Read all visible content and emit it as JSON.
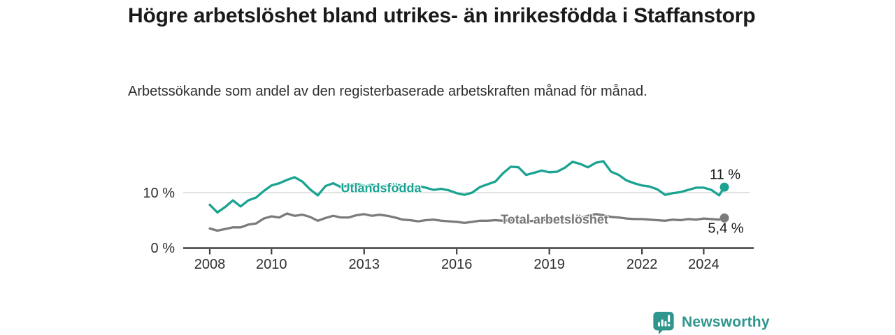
{
  "header": {
    "title": "Högre arbetslöshet bland utrikes- än inrikesfödda i Staffanstorp",
    "subtitle": "Arbetssökande som andel av den registerbaserade arbetskraften månad för månad."
  },
  "footer": {
    "brand": "Newsworthy"
  },
  "colors": {
    "accent_teal": "#1aa392",
    "series_gray": "#7b7b7b",
    "axis": "#3f3f3f",
    "gridline": "#d8d8d8",
    "tick_text": "#2e2e2e",
    "title_text": "#1a1a1a",
    "logo_teal": "#2f968e"
  },
  "chart_data": {
    "type": "line",
    "title": "Högre arbetslöshet bland utrikes- än inrikesfödda i Staffanstorp",
    "subtitle": "Arbetssökande som andel av den registerbaserade arbetskraften månad för månad.",
    "xlabel": "",
    "ylabel": "",
    "xlim": [
      2007.8,
      2025.0
    ],
    "ylim": [
      0,
      16.5
    ],
    "grid": "single horizontal gridline at 10 %",
    "legend_position": "inline labels on lines",
    "x_ticks": [
      {
        "year": 2008,
        "label": "2008"
      },
      {
        "year": 2010,
        "label": "2010"
      },
      {
        "year": 2013,
        "label": "2013"
      },
      {
        "year": 2016,
        "label": "2016"
      },
      {
        "year": 2019,
        "label": "2019"
      },
      {
        "year": 2022,
        "label": "2022"
      },
      {
        "year": 2024,
        "label": "2024"
      }
    ],
    "y_ticks": [
      {
        "value": 0,
        "label": "0 %"
      },
      {
        "value": 10,
        "label": "10 %"
      }
    ],
    "x": [
      2008,
      2008.25,
      2008.5,
      2008.75,
      2009,
      2009.25,
      2009.5,
      2009.75,
      2010,
      2010.25,
      2010.5,
      2010.75,
      2011,
      2011.25,
      2011.5,
      2011.75,
      2012,
      2012.25,
      2012.5,
      2012.75,
      2013,
      2013.25,
      2013.5,
      2013.75,
      2014,
      2014.25,
      2014.5,
      2014.75,
      2015,
      2015.25,
      2015.5,
      2015.75,
      2016,
      2016.25,
      2016.5,
      2016.75,
      2017,
      2017.25,
      2017.5,
      2017.75,
      2018,
      2018.25,
      2018.5,
      2018.75,
      2019,
      2019.25,
      2019.5,
      2019.75,
      2020,
      2020.25,
      2020.5,
      2020.75,
      2021,
      2021.25,
      2021.5,
      2021.75,
      2022,
      2022.25,
      2022.5,
      2022.75,
      2023,
      2023.25,
      2023.5,
      2023.75,
      2024,
      2024.25,
      2024.5,
      2024.67
    ],
    "series": [
      {
        "id": "utlandsfodda",
        "name": "Utlandsfödda",
        "color": "#1aa392",
        "end_label": "11 %",
        "end_value": 11.0,
        "values": [
          7.8,
          6.4,
          7.4,
          8.6,
          7.5,
          8.6,
          9.1,
          10.3,
          11.3,
          11.7,
          12.3,
          12.8,
          12.0,
          10.6,
          9.5,
          11.2,
          11.7,
          11.0,
          11.3,
          11.6,
          11.2,
          11.4,
          11.1,
          11.3,
          11.5,
          11.2,
          11.0,
          11.2,
          10.9,
          10.5,
          10.7,
          10.4,
          9.9,
          9.6,
          10.0,
          11.0,
          11.5,
          12.0,
          13.5,
          14.7,
          14.6,
          13.2,
          13.6,
          14.0,
          13.7,
          13.8,
          14.5,
          15.6,
          15.2,
          14.6,
          15.4,
          15.7,
          13.8,
          13.2,
          12.2,
          11.7,
          11.3,
          11.1,
          10.6,
          9.6,
          9.9,
          10.1,
          10.5,
          10.9,
          10.9,
          10.5,
          9.5,
          11.0
        ]
      },
      {
        "id": "total-arbetsloshet",
        "name": "Total arbetslöshet",
        "color": "#7b7b7b",
        "end_label": "5,4 %",
        "end_value": 5.4,
        "values": [
          3.5,
          3.1,
          3.4,
          3.7,
          3.7,
          4.2,
          4.4,
          5.3,
          5.7,
          5.5,
          6.2,
          5.8,
          6.0,
          5.6,
          4.9,
          5.4,
          5.8,
          5.5,
          5.5,
          5.9,
          6.1,
          5.8,
          6.0,
          5.8,
          5.5,
          5.1,
          5.0,
          4.8,
          5.0,
          5.1,
          4.9,
          4.8,
          4.7,
          4.5,
          4.7,
          4.9,
          4.9,
          5.0,
          4.9,
          5.0,
          4.9,
          4.8,
          4.9,
          5.0,
          5.1,
          5.0,
          5.2,
          5.3,
          5.4,
          5.8,
          6.1,
          5.9,
          5.6,
          5.5,
          5.3,
          5.2,
          5.2,
          5.1,
          5.0,
          4.9,
          5.1,
          5.0,
          5.2,
          5.1,
          5.3,
          5.2,
          5.1,
          5.4
        ]
      }
    ]
  }
}
